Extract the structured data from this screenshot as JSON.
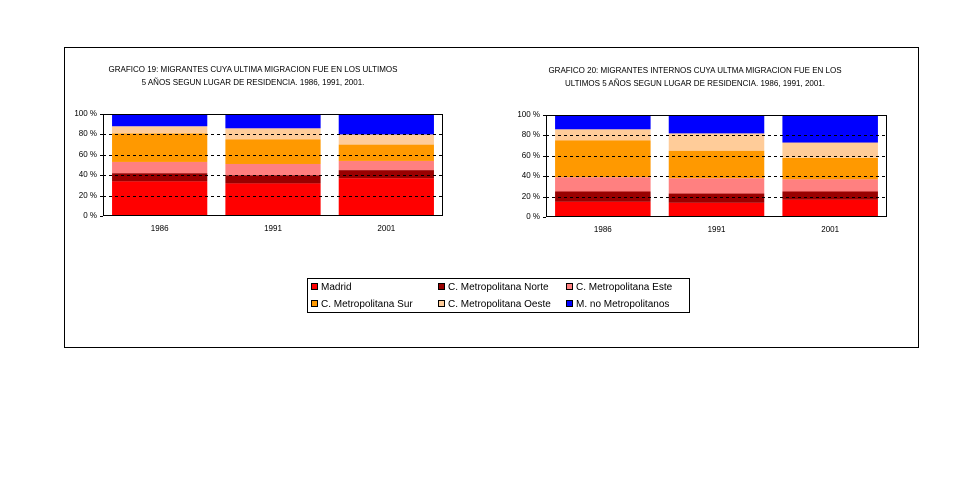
{
  "chart_data": [
    {
      "type": "bar",
      "stacked": "percent",
      "title": [
        "GRAFICO 19: MIGRANTES CUYA ULTIMA MIGRACION FUE EN LOS ULTIMOS",
        "5 AÑOS SEGUN LUGAR DE RESIDENCIA. 1986, 1991, 2001."
      ],
      "categories": [
        "1986",
        "1991",
        "2001"
      ],
      "ylim": [
        0,
        100
      ],
      "yticks": [
        100,
        80,
        60,
        40,
        20,
        0
      ],
      "ytick_labels": [
        "100 %",
        "80 %",
        "60 %",
        "40 %",
        "20 %",
        "0 %"
      ],
      "grid": true,
      "legend": "bottom-center",
      "series": [
        {
          "name": "Madrid",
          "color": "#FF0000",
          "values": [
            34,
            32,
            37
          ]
        },
        {
          "name": "C. Metropolitana Norte",
          "color": "#990000",
          "values": [
            8,
            8,
            8
          ]
        },
        {
          "name": "C. Metropolitana Este",
          "color": "#FF8080",
          "values": [
            11,
            11,
            9
          ]
        },
        {
          "name": "C. Metropolitana Sur",
          "color": "#FF9900",
          "values": [
            28,
            24,
            16
          ]
        },
        {
          "name": "C. Metropolitana Oeste",
          "color": "#FFCC99",
          "values": [
            7,
            11,
            10
          ]
        },
        {
          "name": "M. no Metropolitanos",
          "color": "#0000FF",
          "values": [
            12,
            14,
            20
          ]
        }
      ]
    },
    {
      "type": "bar",
      "stacked": "percent",
      "title": [
        "GRAFICO 20: MIGRANTES INTERNOS CUYA ULTMA MIGRACION FUE EN LOS",
        "ULTIMOS 5 AÑOS SEGUN LUGAR DE RESIDENCIA. 1986, 1991, 2001."
      ],
      "categories": [
        "1986",
        "1991",
        "2001"
      ],
      "ylim": [
        0,
        100
      ],
      "yticks": [
        100,
        80,
        60,
        40,
        20,
        0
      ],
      "ytick_labels": [
        "100 %",
        "80 %",
        "60 %",
        "40 %",
        "20 %",
        "0 %"
      ],
      "grid": true,
      "legend": "bottom-center",
      "series": [
        {
          "name": "Madrid",
          "color": "#FF0000",
          "values": [
            15,
            14,
            17
          ]
        },
        {
          "name": "C. Metropolitana Norte",
          "color": "#990000",
          "values": [
            10,
            9,
            8
          ]
        },
        {
          "name": "C. Metropolitana Este",
          "color": "#FF8080",
          "values": [
            14,
            15,
            12
          ]
        },
        {
          "name": "C. Metropolitana Sur",
          "color": "#FF9900",
          "values": [
            36,
            27,
            21
          ]
        },
        {
          "name": "C. Metropolitana Oeste",
          "color": "#FFCC99",
          "values": [
            11,
            17,
            15
          ]
        },
        {
          "name": "M. no Metropolitanos",
          "color": "#0000FF",
          "values": [
            14,
            18,
            27
          ]
        }
      ]
    }
  ]
}
